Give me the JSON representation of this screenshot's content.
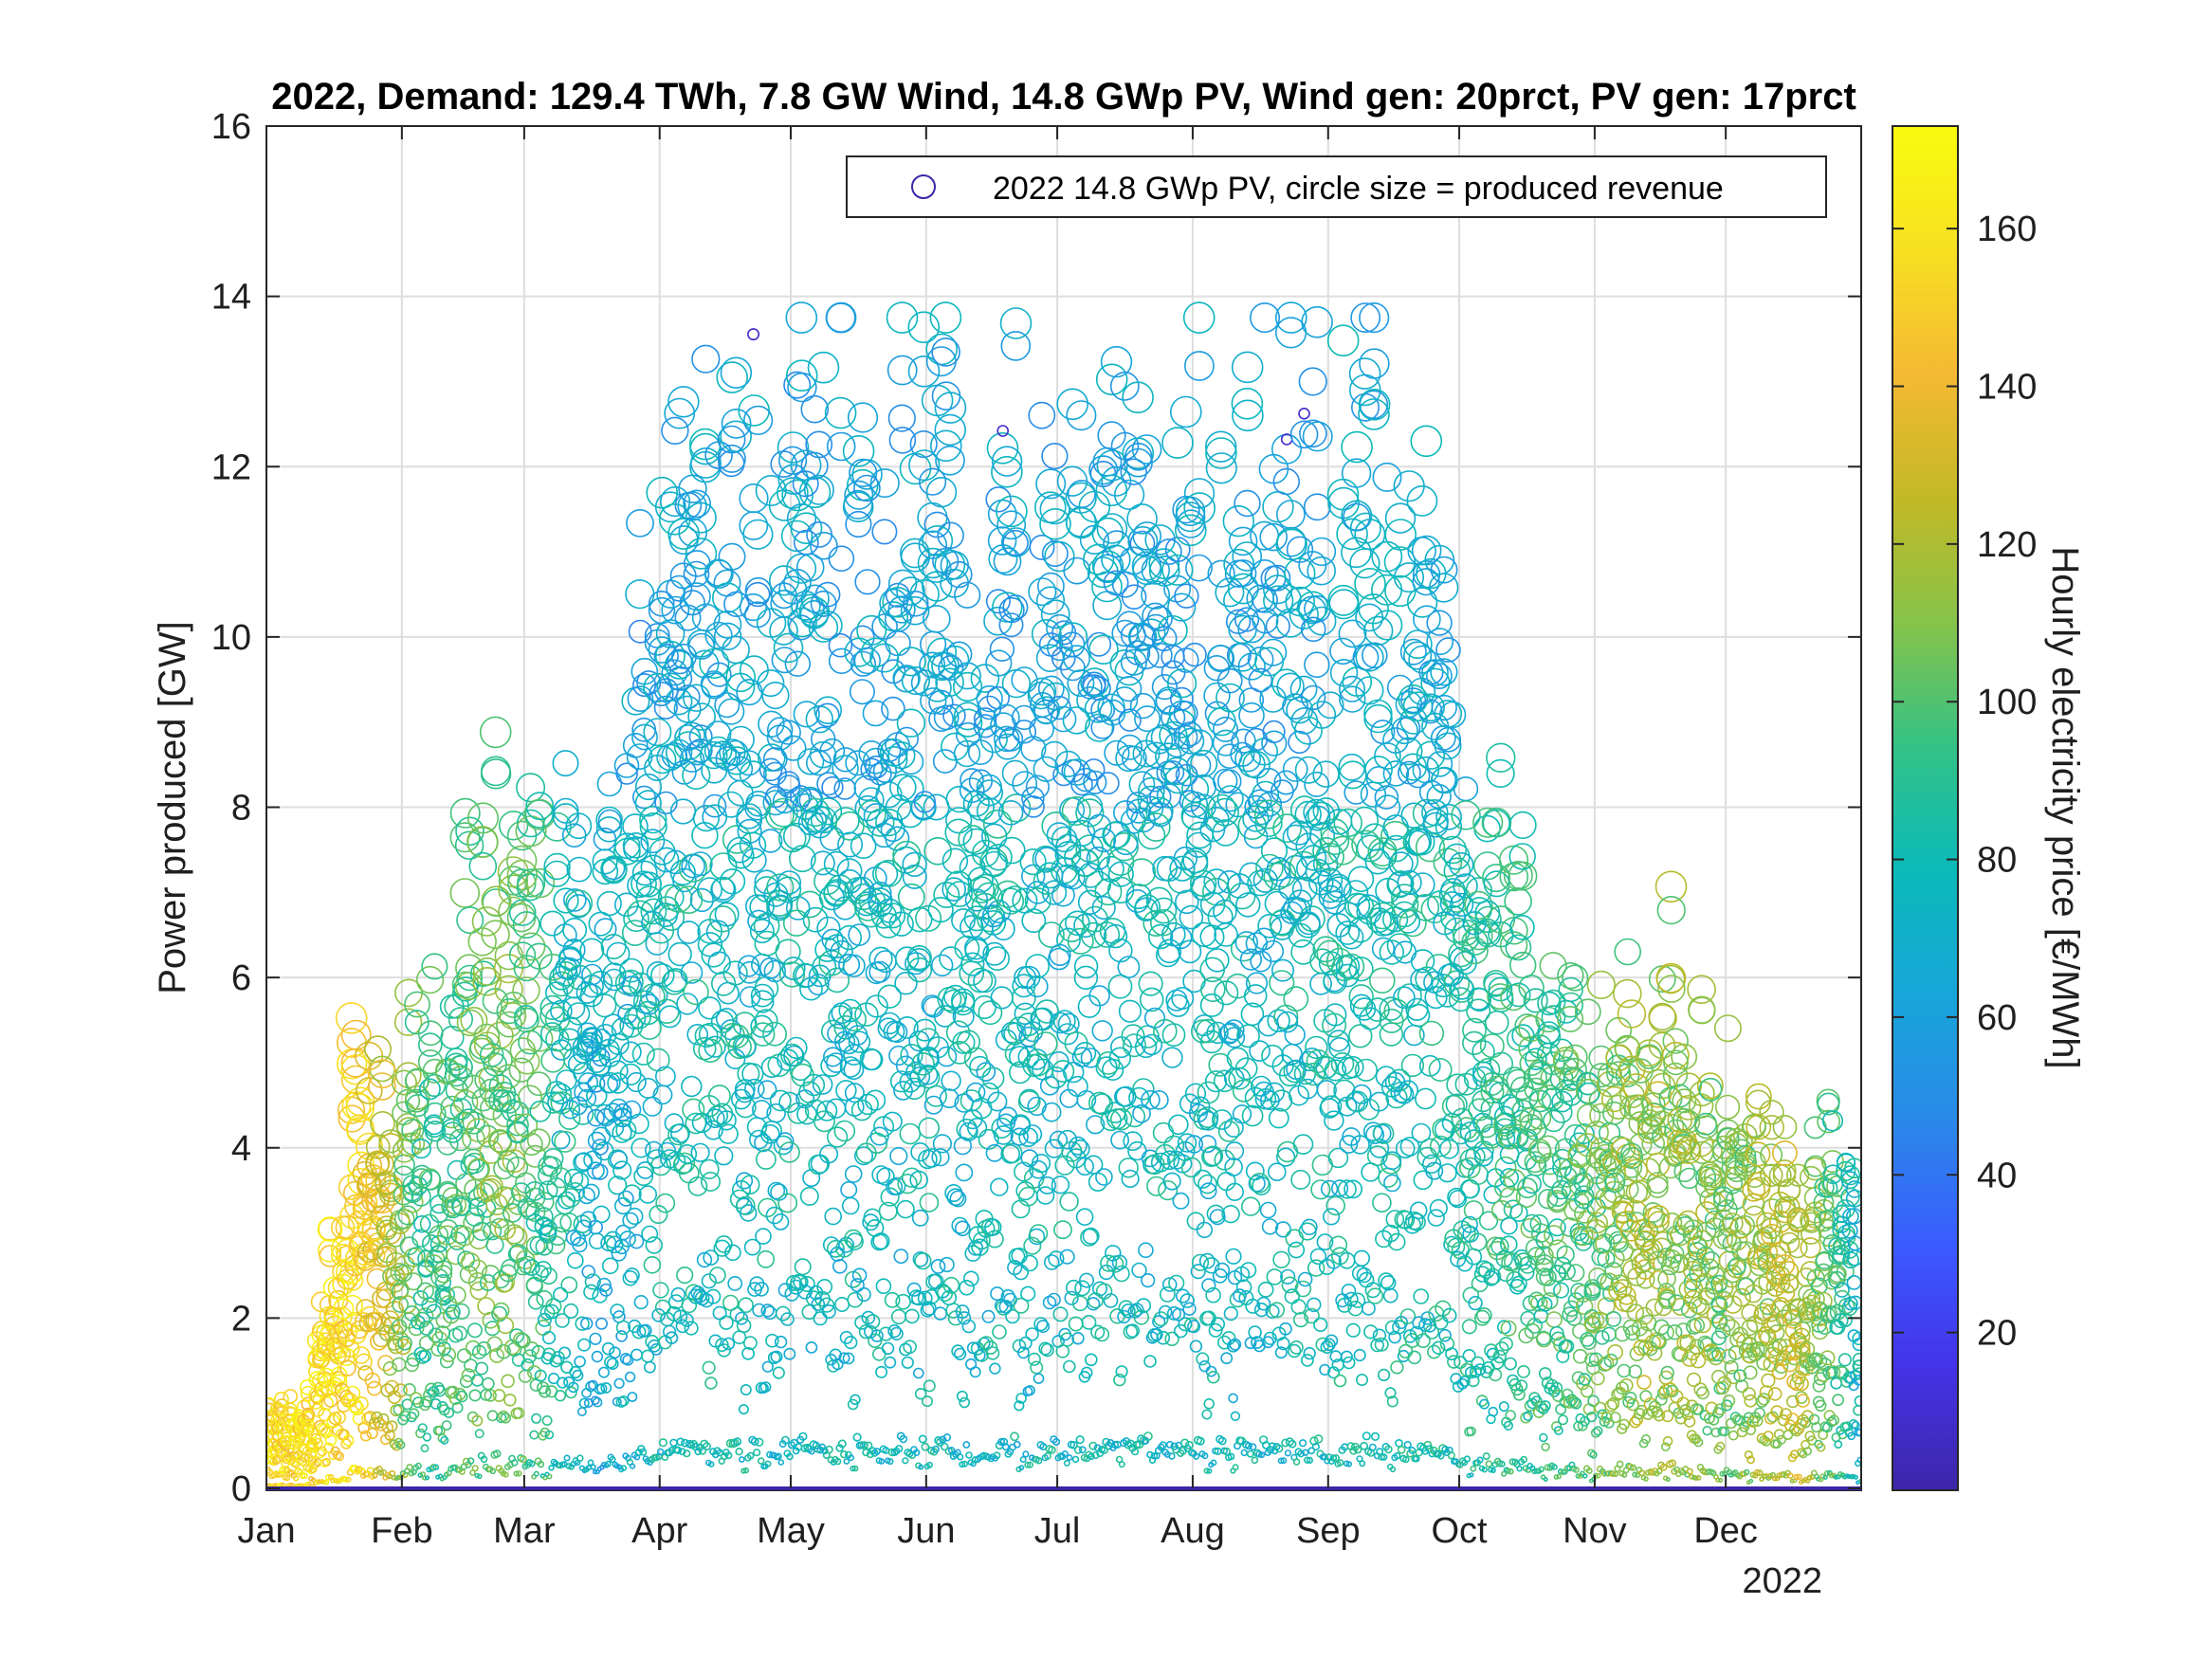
{
  "chart_data": {
    "type": "scatter",
    "title": "2022, Demand: 129.4 TWh, 7.8 GW Wind, 14.8 GWp PV, Wind gen: 20prct, PV gen: 17prct",
    "xlabel": "",
    "ylabel": "Power produced [GW]",
    "x_year_label": "2022",
    "ylim": [
      0,
      16
    ],
    "y_ticks": [
      0,
      2,
      4,
      6,
      8,
      10,
      12,
      14,
      16
    ],
    "x_month_ticks": [
      "Jan",
      "Feb",
      "Mar",
      "Apr",
      "May",
      "Jun",
      "Jul",
      "Aug",
      "Sep",
      "Oct",
      "Nov",
      "Dec"
    ],
    "x_range_days": [
      0,
      365
    ],
    "grid": true,
    "legend": {
      "placement": "top-right",
      "entries": [
        "2022 14.8 GWp PV, circle size = produced revenue"
      ]
    },
    "colorbar": {
      "label": "Hourly electricity price [€/MWh]",
      "range": [
        0,
        173
      ],
      "ticks": [
        20,
        40,
        60,
        80,
        100,
        120,
        140,
        160
      ],
      "colormap": [
        "#3e26a8",
        "#4433e8",
        "#3a5cfe",
        "#2a8ae8",
        "#17a6d9",
        "#0bbab9",
        "#33c285",
        "#86c34a",
        "#c3b925",
        "#f4b933",
        "#f7e022",
        "#f9fb0e"
      ]
    },
    "series": [
      {
        "marker": "open circle",
        "summary": "Hourly PV output for 2022; peak near 13.7 GW in June-July, low outputs in winter with high prices (yellow-orange), summer mid-day outputs at moderate prices (blue-teal)",
        "sample_points": [
          {
            "x_day": 10,
            "y": 1.2,
            "price": 150
          },
          {
            "x_day": 20,
            "y": 5.7,
            "price": 150
          },
          {
            "x_day": 35,
            "y": 6.1,
            "price": 85
          },
          {
            "x_day": 55,
            "y": 9.0,
            "price": 100
          },
          {
            "x_day": 75,
            "y": 7.6,
            "price": 60
          },
          {
            "x_day": 95,
            "y": 12.8,
            "price": 75
          },
          {
            "x_day": 115,
            "y": 13.4,
            "price": 70
          },
          {
            "x_day": 140,
            "y": 13.7,
            "price": 70
          },
          {
            "x_day": 160,
            "y": 13.6,
            "price": 70
          },
          {
            "x_day": 185,
            "y": 13.6,
            "price": 70
          },
          {
            "x_day": 205,
            "y": 13.2,
            "price": 70
          },
          {
            "x_day": 230,
            "y": 13.5,
            "price": 70
          },
          {
            "x_day": 250,
            "y": 13.2,
            "price": 75
          },
          {
            "x_day": 270,
            "y": 11.4,
            "price": 75
          },
          {
            "x_day": 285,
            "y": 7.6,
            "price": 85
          },
          {
            "x_day": 300,
            "y": 5.6,
            "price": 90
          },
          {
            "x_day": 315,
            "y": 7.0,
            "price": 110
          },
          {
            "x_day": 335,
            "y": 4.7,
            "price": 100
          },
          {
            "x_day": 350,
            "y": 4.3,
            "price": 120
          },
          {
            "x_day": 363,
            "y": 4.0,
            "price": 70
          }
        ]
      }
    ]
  }
}
